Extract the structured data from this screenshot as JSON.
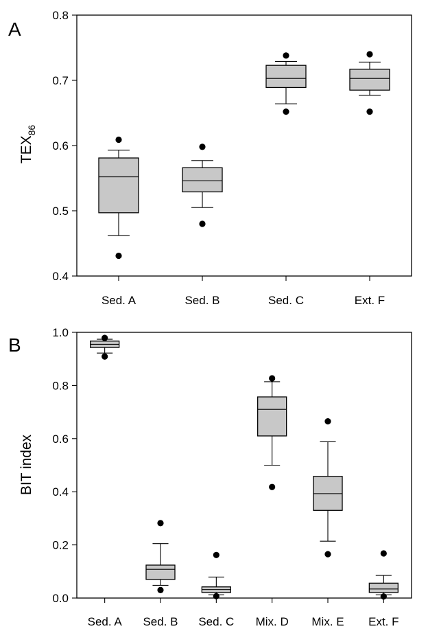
{
  "chart_data": [
    {
      "type": "box",
      "panel_label": "A",
      "ylabel": "TEX",
      "ylabel_subscript": "86",
      "ylim": [
        0.4,
        0.8
      ],
      "yticks": [
        "0.4",
        "0.5",
        "0.6",
        "0.7",
        "0.8"
      ],
      "categories": [
        "Sed. A",
        "Sed. B",
        "Sed. C",
        "Ext. F"
      ],
      "boxes": [
        {
          "q1": 0.497,
          "median": 0.552,
          "q3": 0.581,
          "whisker_low": 0.462,
          "whisker_high": 0.593,
          "outliers": [
            0.431,
            0.609
          ]
        },
        {
          "q1": 0.529,
          "median": 0.546,
          "q3": 0.566,
          "whisker_low": 0.505,
          "whisker_high": 0.577,
          "outliers": [
            0.48,
            0.598
          ]
        },
        {
          "q1": 0.689,
          "median": 0.703,
          "q3": 0.723,
          "whisker_low": 0.664,
          "whisker_high": 0.729,
          "outliers": [
            0.652,
            0.738
          ]
        },
        {
          "q1": 0.685,
          "median": 0.703,
          "q3": 0.717,
          "whisker_low": 0.677,
          "whisker_high": 0.728,
          "outliers": [
            0.652,
            0.74
          ]
        }
      ],
      "fill_color": "#c8c8c8"
    },
    {
      "type": "box",
      "panel_label": "B",
      "ylabel": "BIT index",
      "ylabel_subscript": "",
      "ylim": [
        0.0,
        1.0
      ],
      "yticks": [
        "0.0",
        "0.2",
        "0.4",
        "0.6",
        "0.8",
        "1.0"
      ],
      "categories": [
        "Sed. A",
        "Sed. B",
        "Sed. C",
        "Mix. D",
        "Mix. E",
        "Ext. F"
      ],
      "boxes": [
        {
          "q1": 0.943,
          "median": 0.955,
          "q3": 0.967,
          "whisker_low": 0.922,
          "whisker_high": 0.974,
          "outliers": [
            0.909,
            0.979
          ]
        },
        {
          "q1": 0.07,
          "median": 0.108,
          "q3": 0.124,
          "whisker_low": 0.048,
          "whisker_high": 0.205,
          "outliers": [
            0.03,
            0.282
          ]
        },
        {
          "q1": 0.021,
          "median": 0.032,
          "q3": 0.042,
          "whisker_low": 0.012,
          "whisker_high": 0.079,
          "outliers": [
            0.007,
            0.162
          ]
        },
        {
          "q1": 0.61,
          "median": 0.71,
          "q3": 0.757,
          "whisker_low": 0.5,
          "whisker_high": 0.814,
          "outliers": [
            0.418,
            0.827
          ]
        },
        {
          "q1": 0.33,
          "median": 0.393,
          "q3": 0.458,
          "whisker_low": 0.214,
          "whisker_high": 0.588,
          "outliers": [
            0.165,
            0.665
          ]
        },
        {
          "q1": 0.021,
          "median": 0.034,
          "q3": 0.056,
          "whisker_low": 0.012,
          "whisker_high": 0.085,
          "outliers": [
            0.006,
            0.168
          ]
        }
      ],
      "fill_color": "#c8c8c8"
    }
  ]
}
